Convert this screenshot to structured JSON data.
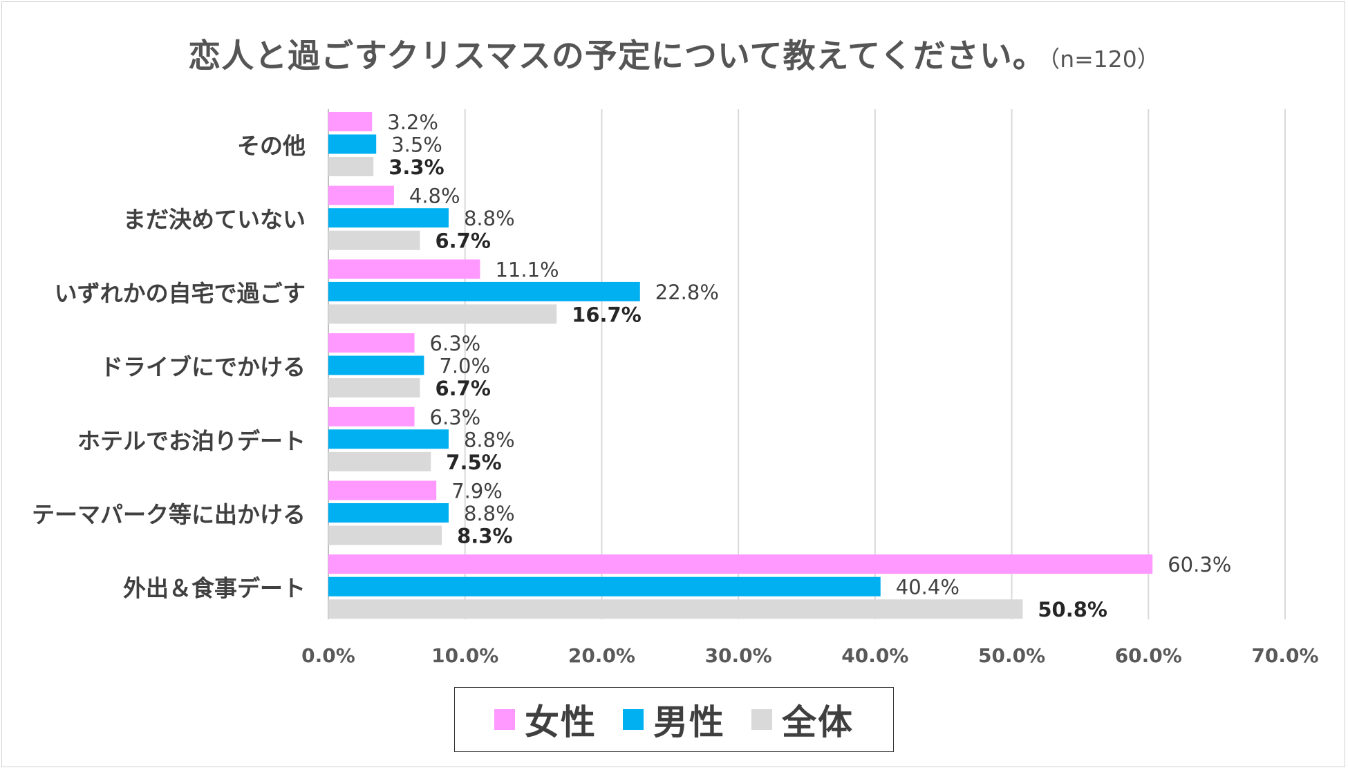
{
  "title": {
    "main": "恋人と過ごすクリスマスの予定について教えてください。",
    "sample": "（n=120）"
  },
  "colors": {
    "female": "#FF99FF",
    "male": "#00B0F0",
    "total": "#D9D9D9",
    "grid": "#D9D9D9",
    "text": "#404040"
  },
  "chart_data": {
    "type": "bar",
    "orientation": "horizontal",
    "title": "恋人と過ごすクリスマスの予定について教えてください。（n=120）",
    "categories": [
      "その他",
      "まだ決めていない",
      "いずれかの自宅で過ごす",
      "ドライブにでかける",
      "ホテルでお泊りデート",
      "テーマパーク等に出かける",
      "外出＆食事デート"
    ],
    "series": [
      {
        "name": "女性",
        "color": "#FF99FF",
        "values": [
          3.2,
          4.8,
          11.1,
          6.3,
          6.3,
          7.9,
          60.3
        ],
        "labels": [
          "3.2%",
          "4.8%",
          "11.1%",
          "6.3%",
          "6.3%",
          "7.9%",
          "60.3%"
        ],
        "bold_labels": false
      },
      {
        "name": "男性",
        "color": "#00B0F0",
        "values": [
          3.5,
          8.8,
          22.8,
          7.0,
          8.8,
          8.8,
          40.4
        ],
        "labels": [
          "3.5%",
          "8.8%",
          "22.8%",
          "7.0%",
          "8.8%",
          "8.8%",
          "40.4%"
        ],
        "bold_labels": false
      },
      {
        "name": "全体",
        "color": "#D9D9D9",
        "values": [
          3.3,
          6.7,
          16.7,
          6.7,
          7.5,
          8.3,
          50.8
        ],
        "labels": [
          "3.3%",
          "6.7%",
          "16.7%",
          "6.7%",
          "7.5%",
          "8.3%",
          "50.8%"
        ],
        "bold_labels": true
      }
    ],
    "xlim": [
      0,
      70
    ],
    "xticks": [
      0,
      10,
      20,
      30,
      40,
      50,
      60,
      70
    ],
    "xtick_labels": [
      "0.0%",
      "10.0%",
      "20.0%",
      "30.0%",
      "40.0%",
      "50.0%",
      "60.0%",
      "70.0%"
    ],
    "xlabel": "",
    "ylabel": "",
    "grid": true,
    "legend_position": "bottom"
  },
  "legend": {
    "items": [
      {
        "label": "女性",
        "color": "#FF99FF"
      },
      {
        "label": "男性",
        "color": "#00B0F0"
      },
      {
        "label": "全体",
        "color": "#D9D9D9"
      }
    ]
  }
}
